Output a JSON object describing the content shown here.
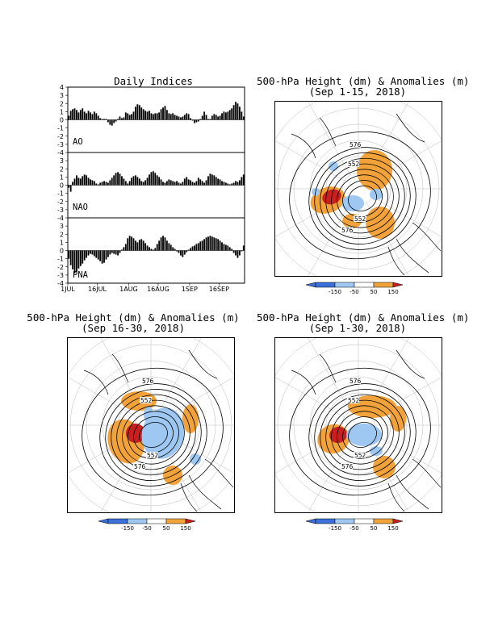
{
  "daily_panel": {
    "title": "Daily Indices"
  },
  "maps": [
    {
      "title": "500-hPa Height (dm) & Anomalies (m)",
      "subtitle": "(Sep 1-15, 2018)"
    },
    {
      "title": "500-hPa Height (dm) & Anomalies (m)",
      "subtitle": "(Sep 16-30, 2018)"
    },
    {
      "title": "500-hPa Height (dm) & Anomalies (m)",
      "subtitle": "(Sep 1-30, 2018)"
    }
  ],
  "contour_labels": [
    "576",
    "552"
  ],
  "colorbar": {
    "labels": [
      "-150",
      "-50",
      "50",
      "150"
    ],
    "colors": [
      "#3b6fd9",
      "#9ec8f2",
      "#ffffff",
      "#f2a23a",
      "#c7201f"
    ]
  },
  "chart_data": [
    {
      "type": "bar",
      "title": "Daily Indices",
      "ylim": [
        -4,
        4
      ],
      "yticks": [
        "4",
        "3",
        "2",
        "1",
        "0",
        "-1",
        "-2",
        "-3",
        "-4"
      ],
      "x_tick_labels": [
        "1JUL",
        "16JUL",
        "1AUG",
        "16AUG",
        "1SEP",
        "16SEP"
      ],
      "start_date": "2018-07-01",
      "series": [
        {
          "name": "AO",
          "values": [
            0.5,
            1.1,
            1.3,
            1.4,
            1.2,
            0.9,
            1.2,
            1.4,
            1.0,
            0.8,
            1.1,
            0.9,
            0.7,
            1.0,
            0.8,
            0.5,
            0.2,
            0.1,
            0.1,
            0.1,
            -0.3,
            -0.6,
            -0.7,
            -0.4,
            -0.2,
            0.1,
            0.4,
            0.2,
            0.3,
            0.9,
            0.8,
            0.6,
            0.7,
            1.0,
            1.6,
            1.9,
            1.8,
            1.5,
            1.3,
            1.1,
            1.0,
            1.1,
            0.8,
            0.7,
            0.8,
            0.8,
            0.9,
            1.3,
            1.5,
            1.7,
            1.2,
            0.8,
            0.7,
            0.8,
            0.6,
            0.5,
            0.4,
            0.3,
            0.4,
            0.6,
            0.8,
            0.7,
            0.2,
            -0.1,
            -0.4,
            -0.3,
            -0.2,
            0.1,
            0.5,
            1.0,
            0.6,
            0.1,
            0.1,
            0.5,
            0.7,
            0.6,
            0.4,
            0.5,
            0.8,
            1.0,
            0.9,
            1.0,
            1.2,
            1.4,
            1.8,
            2.2,
            2.0,
            1.6,
            1.0,
            0.4
          ]
        },
        {
          "name": "NAO",
          "values": [
            -0.3,
            -0.8,
            0.4,
            0.8,
            1.2,
            0.9,
            0.8,
            1.1,
            1.3,
            1.2,
            0.9,
            0.7,
            0.6,
            0.5,
            0.2,
            0.1,
            0.3,
            0.4,
            0.5,
            0.4,
            0.3,
            0.6,
            0.9,
            1.2,
            1.5,
            1.6,
            1.4,
            1.1,
            0.8,
            0.5,
            0.2,
            0.5,
            0.9,
            1.1,
            1.2,
            1.0,
            0.8,
            0.5,
            0.4,
            0.6,
            0.9,
            1.3,
            1.6,
            1.7,
            1.5,
            1.2,
            1.0,
            0.7,
            0.4,
            0.3,
            0.5,
            0.7,
            0.6,
            0.5,
            0.4,
            0.5,
            0.3,
            0.2,
            0.4,
            0.8,
            1.0,
            0.7,
            0.6,
            0.4,
            0.3,
            0.5,
            0.9,
            0.7,
            0.5,
            0.3,
            0.6,
            1.1,
            1.4,
            1.3,
            1.2,
            1.0,
            0.8,
            0.7,
            0.5,
            0.4,
            0.3,
            0.2,
            0.1,
            0.2,
            0.3,
            0.5,
            0.4,
            0.6,
            1.0,
            1.3
          ]
        },
        {
          "name": "PNA",
          "values": [
            -1.0,
            -1.8,
            -2.3,
            -2.8,
            -2.6,
            -2.2,
            -1.9,
            -1.6,
            -1.2,
            -0.9,
            -0.6,
            -0.4,
            -0.5,
            -0.7,
            -0.9,
            -1.1,
            -1.3,
            -1.6,
            -1.5,
            -1.1,
            -0.8,
            -0.5,
            -0.3,
            -0.4,
            -0.5,
            -0.6,
            -0.3,
            0.1,
            0.4,
            0.8,
            1.5,
            1.8,
            1.7,
            1.5,
            1.2,
            1.0,
            1.3,
            1.4,
            1.2,
            0.9,
            0.6,
            0.4,
            0.2,
            0.1,
            0.3,
            0.8,
            1.2,
            1.6,
            1.8,
            1.6,
            1.2,
            0.9,
            0.7,
            0.4,
            0.2,
            -0.1,
            -0.3,
            -0.6,
            -0.8,
            -0.5,
            -0.2,
            0.1,
            0.3,
            0.5,
            0.6,
            0.8,
            0.9,
            1.1,
            1.2,
            1.4,
            1.6,
            1.7,
            1.8,
            1.7,
            1.6,
            1.5,
            1.4,
            1.2,
            1.0,
            0.8,
            0.7,
            0.6,
            0.4,
            0.2,
            -0.3,
            -0.6,
            -0.9,
            -0.6,
            -0.1,
            0.6
          ]
        }
      ]
    }
  ]
}
